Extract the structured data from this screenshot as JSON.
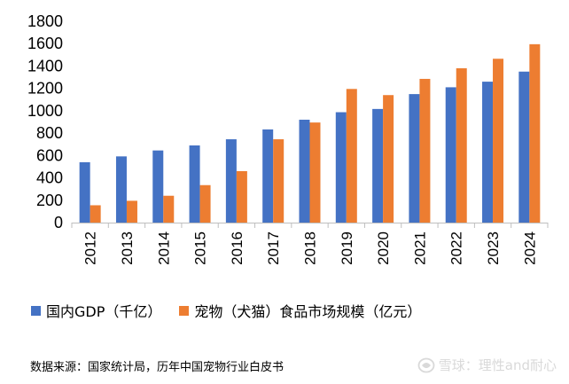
{
  "chart_data": {
    "type": "bar",
    "categories": [
      "2012",
      "2013",
      "2014",
      "2015",
      "2016",
      "2017",
      "2018",
      "2019",
      "2020",
      "2021",
      "2022",
      "2023",
      "2024"
    ],
    "series": [
      {
        "name": "国内GDP（千亿）",
        "color": "#4472C4",
        "values": [
          540,
          592,
          645,
          690,
          745,
          833,
          920,
          987,
          1016,
          1149,
          1210,
          1260,
          1350
        ]
      },
      {
        "name": "宠物（犬猫）食品市场规模（亿元）",
        "color": "#ED7D31",
        "values": [
          155,
          195,
          240,
          335,
          460,
          745,
          895,
          1195,
          1140,
          1285,
          1380,
          1465,
          1595
        ]
      }
    ],
    "ylim": [
      0,
      1800
    ],
    "yticks": [
      "0",
      "200",
      "400",
      "600",
      "800",
      "1000",
      "1200",
      "1400",
      "1600",
      "1800"
    ],
    "grid": false,
    "legend_position": "bottom"
  },
  "source_text": "数据来源：国家统计局，历年中国宠物行业白皮书",
  "watermark": {
    "icon": "snowball-logo-icon",
    "text": "雪球：理性and耐心"
  }
}
